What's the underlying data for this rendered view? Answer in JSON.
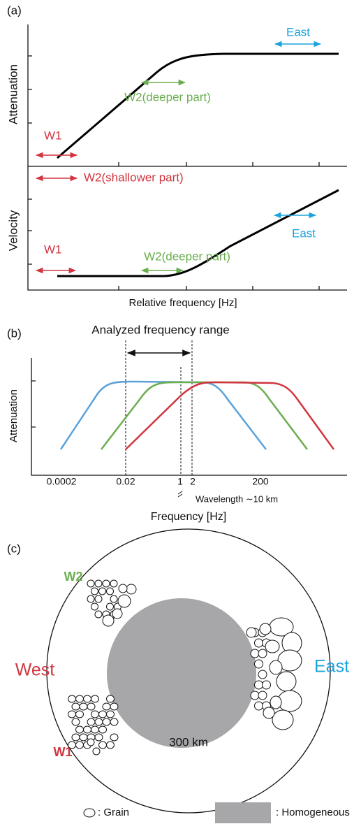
{
  "panel_a": {
    "label": "(a)",
    "attenuation_ylabel": "Attenuation",
    "velocity_ylabel": "Velocity",
    "xlabel": "Relative frequency [Hz]",
    "annotations": {
      "east_top": "East",
      "w2_deep_top": "W2(deeper part)",
      "w1_top": "W1",
      "w2_shallow": "W2(shallower part)",
      "east_bottom": "East",
      "w1_bottom": "W1",
      "w2_deep_bottom": "W2(deeper part)"
    }
  },
  "panel_b": {
    "label": "(b)",
    "title": "Analyzed frequency range",
    "ylabel": "Attenuation",
    "xlabel": "Frequency [Hz]",
    "xtick_labels": [
      "0.0002",
      "0.02",
      "1",
      "2",
      "200"
    ],
    "note": "Wavelength ∼10 km"
  },
  "panel_c": {
    "label": "(c)",
    "w2": "W2",
    "west": "West",
    "w1": "W1",
    "east": "East",
    "size": "300 km",
    "legend": {
      "grain": ": Grain",
      "homogeneous": ": Homogeneous"
    }
  }
}
